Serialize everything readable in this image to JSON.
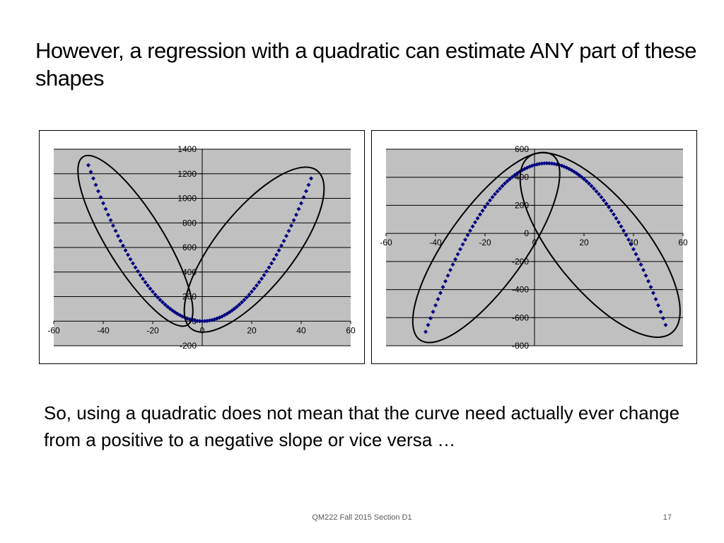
{
  "slide": {
    "title": "However, a regression with a quadratic can estimate ANY part of these shapes",
    "body": "So, using a quadratic does not mean that the curve need actually ever change from a positive to a negative slope or vice versa …",
    "footer": "QM222 Fall 2015 Section D1",
    "page_number": "17"
  },
  "colors": {
    "plot_bg": "#c0c0c0",
    "marker": "#000080",
    "gridline": "#000000",
    "ellipse": "#000000"
  },
  "chart_data": [
    {
      "type": "scatter",
      "marker": "diamond",
      "grid": true,
      "legend": "none",
      "xlim": [
        -60,
        60
      ],
      "ylim": [
        -200,
        1400
      ],
      "x_ticks": [
        -60,
        -40,
        -20,
        0,
        20,
        40,
        60
      ],
      "y_ticks": [
        -200,
        0,
        200,
        400,
        600,
        800,
        1000,
        1200,
        1400
      ],
      "series": [
        {
          "function": "y = 0.6 * x^2",
          "x_range": [
            -46,
            44
          ],
          "x_step": 1
        }
      ],
      "annotations": [
        {
          "type": "ellipse",
          "around_x": [
            -57,
            -10
          ]
        },
        {
          "type": "ellipse",
          "around_x": [
            0,
            45
          ]
        }
      ]
    },
    {
      "type": "scatter",
      "marker": "diamond",
      "grid": true,
      "legend": "none",
      "xlim": [
        -60,
        60
      ],
      "ylim": [
        -800,
        600
      ],
      "x_ticks": [
        -60,
        -40,
        -20,
        0,
        20,
        40,
        60
      ],
      "y_ticks": [
        -800,
        -600,
        -400,
        -200,
        0,
        200,
        400,
        600
      ],
      "series": [
        {
          "function": "y = 500 - 0.5 * (x - 5)^2",
          "x_range": [
            -44,
            53
          ],
          "x_step": 1
        }
      ],
      "annotations": [
        {
          "type": "ellipse",
          "around_x": [
            -42,
            3
          ]
        },
        {
          "type": "ellipse",
          "around_x": [
            2,
            55
          ]
        }
      ]
    }
  ]
}
